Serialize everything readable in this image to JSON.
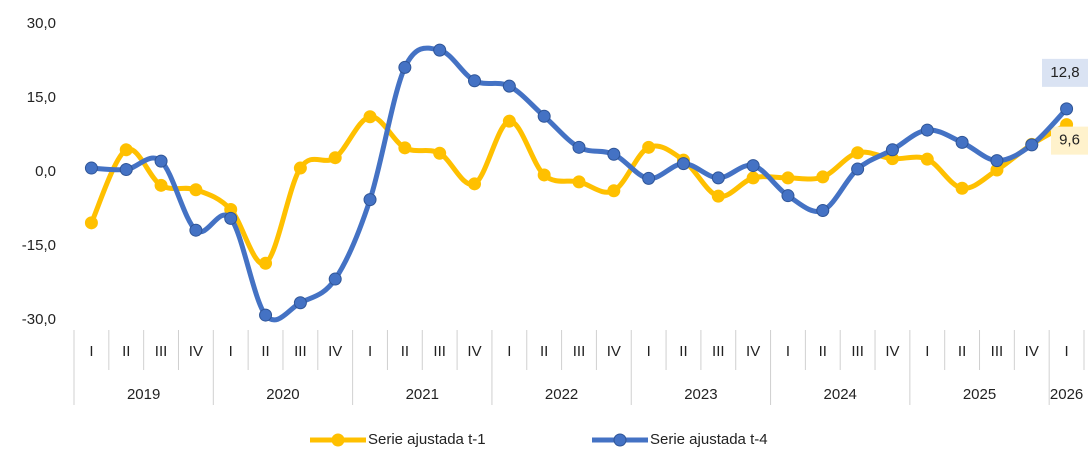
{
  "chart_data": {
    "type": "line",
    "categories": [
      "I",
      "II",
      "III",
      "IV",
      "I",
      "II",
      "III",
      "IV",
      "I",
      "II",
      "III",
      "IV",
      "I",
      "II",
      "III",
      "IV",
      "I",
      "II",
      "III",
      "IV",
      "I",
      "II",
      "III",
      "IV",
      "I",
      "II",
      "III",
      "IV",
      "I"
    ],
    "years": [
      "2019",
      "2020",
      "2021",
      "2022",
      "2023",
      "2024",
      "2025",
      "2026"
    ],
    "series": [
      {
        "name": "Serie ajustada t-1",
        "color": "#FFC000",
        "values": [
          -10.3,
          4.5,
          -2.7,
          -3.6,
          -7.6,
          -18.5,
          0.8,
          2.9,
          11.2,
          4.9,
          3.8,
          -2.4,
          10.3,
          -0.6,
          -2.0,
          -3.8,
          5.0,
          2.4,
          -4.9,
          -1.2,
          -1.2,
          -1.0,
          3.9,
          2.7,
          2.6,
          -3.3,
          0.4,
          5.6,
          9.6
        ],
        "value_labels": [
          null,
          null,
          null,
          null,
          null,
          null,
          null,
          null,
          null,
          null,
          null,
          null,
          null,
          null,
          null,
          null,
          null,
          null,
          null,
          null,
          null,
          null,
          null,
          null,
          null,
          null,
          null,
          null,
          "9,6"
        ],
        "label_color": "#FFF2CC"
      },
      {
        "name": "Serie ajustada t-4",
        "color": "#4472C4",
        "values": [
          0.8,
          0.5,
          2.2,
          -11.8,
          -9.4,
          -29.0,
          -26.5,
          -21.7,
          -5.6,
          21.2,
          24.7,
          18.5,
          17.4,
          11.3,
          5.0,
          3.6,
          -1.3,
          1.7,
          -1.2,
          1.3,
          -4.8,
          -7.8,
          0.6,
          4.5,
          8.5,
          6.0,
          2.3,
          5.5,
          12.8
        ],
        "value_labels": [
          null,
          null,
          null,
          null,
          null,
          null,
          null,
          null,
          null,
          null,
          null,
          null,
          null,
          null,
          null,
          null,
          null,
          null,
          null,
          null,
          null,
          null,
          null,
          null,
          null,
          null,
          null,
          null,
          "12,8"
        ],
        "label_color": "#DAE3F3"
      }
    ],
    "ylim": [
      -30,
      30
    ],
    "yticks": [
      {
        "value": -30,
        "label": "-30,0"
      },
      {
        "value": -15,
        "label": "-15,0"
      },
      {
        "value": 0,
        "label": "0,0"
      },
      {
        "value": 15,
        "label": "15,0"
      },
      {
        "value": 30,
        "label": "30,0"
      }
    ],
    "grid": false,
    "legend": "bottom"
  }
}
